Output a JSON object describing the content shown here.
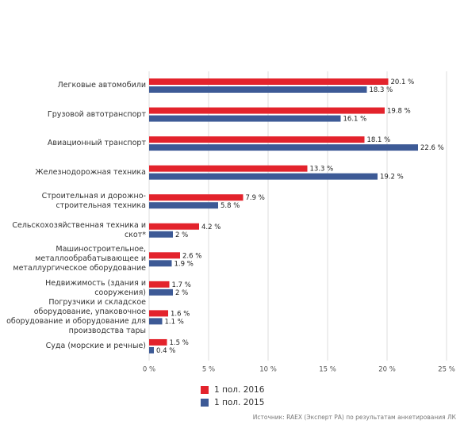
{
  "chart_data": {
    "type": "barh",
    "categories": [
      "Легковые автомобили",
      "Грузовой автотранспорт",
      "Авиационный транспорт",
      "Железнодорожная техника",
      "Строительная и дорожно-\nстроительная техника",
      "Сельскохозяйственная техника и\nскот*",
      "Машиностроительное,\nметаллообрабатывающее и\nметаллургическое оборудование",
      "Недвижимость (здания и сооружения)",
      "Погрузчики и складское\nоборудование, упаковочное\nоборудование и оборудование для\nпроизводства тары",
      "Суда (морские и речные)"
    ],
    "series": [
      {
        "name": "1 пол. 2016",
        "color": "#e3232c",
        "values": [
          20.1,
          19.8,
          18.1,
          13.3,
          7.9,
          4.2,
          2.6,
          1.7,
          1.6,
          1.5
        ],
        "value_labels": [
          "20.1 %",
          "19.8 %",
          "18.1 %",
          "13.3 %",
          "7.9 %",
          "4.2 %",
          "2.6 %",
          "1.7 %",
          "1.6 %",
          "1.5 %"
        ]
      },
      {
        "name": "1 пол. 2015",
        "color": "#3d5a96",
        "values": [
          18.3,
          16.1,
          22.6,
          19.2,
          5.8,
          2,
          1.9,
          2,
          1.1,
          0.4
        ],
        "value_labels": [
          "18.3 %",
          "16.1 %",
          "22.6 %",
          "19.2 %",
          "5.8 %",
          "2 %",
          "1.9 %",
          "2 %",
          "1.1 %",
          "0.4 %"
        ]
      }
    ],
    "xlim": [
      0,
      25
    ],
    "xticks": [
      {
        "value": 0,
        "label": "0 %"
      },
      {
        "value": 5,
        "label": "5 %"
      },
      {
        "value": 10,
        "label": "10 %"
      },
      {
        "value": 15,
        "label": "15 %"
      },
      {
        "value": 20,
        "label": "20 %"
      },
      {
        "value": 25,
        "label": "25 %"
      }
    ],
    "grid": true,
    "source": "Источник: RAEX (Эксперт РА) по результатам анкетирования ЛК"
  }
}
